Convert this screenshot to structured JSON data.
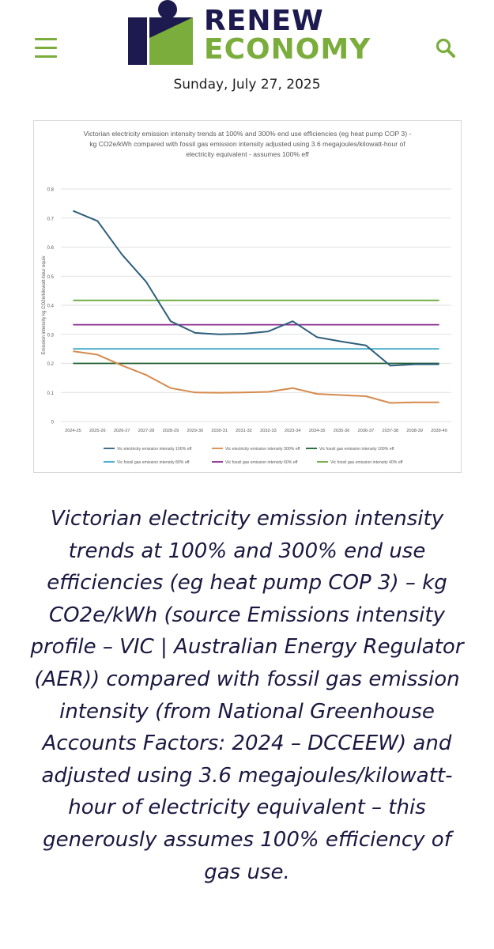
{
  "header": {
    "logo_line1": "RENEW",
    "logo_line2": "ECONOMY",
    "date": "Sunday, July 27, 2025",
    "menu_icon": "hamburger-menu-icon",
    "search_icon": "search-icon",
    "colors": {
      "navy": "#1c1a4e",
      "green": "#7bad3c"
    }
  },
  "chart_data": {
    "type": "line",
    "title_lines": [
      "Victorian electricity emission intensity trends at 100% and 300% end use efficiencies (eg heat pump COP 3) -",
      "kg CO2e/kWh compared with  fossil gas emission intensity  adjusted using 3.6 megajoules/kilowatt-hour of",
      "electricity equivalent - assumes 100% eff"
    ],
    "ylabel": "Emission intensity kg CO2e/kilowatt-hour equiv",
    "xlabel": "",
    "ylim": [
      0,
      0.8
    ],
    "yticks": [
      0,
      0.1,
      0.2,
      0.3,
      0.4,
      0.5,
      0.6,
      0.7,
      0.8
    ],
    "ytick_labels": [
      "0",
      "0.1",
      "0.2",
      "0.3",
      "0.4",
      "0.5",
      "0.6",
      "0.7",
      "0.8"
    ],
    "categories": [
      "2024-25",
      "2025-26",
      "2026-27",
      "2027-28",
      "2028-29",
      "2029-30",
      "2030-31",
      "2031-32",
      "2032-33",
      "2023-34",
      "2034-35",
      "2035-36",
      "2036-37",
      "2037-38",
      "2038-39",
      "2039-40"
    ],
    "grid": true,
    "legend_position": "bottom",
    "series": [
      {
        "name": "Vic electricity emission intensity 100% eff",
        "color": "#2e5f7c",
        "values": [
          0.725,
          0.69,
          0.575,
          0.48,
          0.345,
          0.305,
          0.3,
          0.302,
          0.31,
          0.345,
          0.29,
          0.275,
          0.262,
          0.192,
          0.197,
          0.197
        ]
      },
      {
        "name": "Vic electricity emission intensity 300% eff",
        "color": "#d58a4d",
        "values": [
          0.242,
          0.23,
          0.193,
          0.16,
          0.115,
          0.1,
          0.099,
          0.1,
          0.102,
          0.115,
          0.095,
          0.091,
          0.087,
          0.064,
          0.066,
          0.066
        ]
      },
      {
        "name": "Vic fossil gas emission intensity 100% eff",
        "color": "#1d5e2e",
        "values": [
          0.2,
          0.2,
          0.2,
          0.2,
          0.2,
          0.2,
          0.2,
          0.2,
          0.2,
          0.2,
          0.2,
          0.2,
          0.2,
          0.2,
          0.2,
          0.2
        ]
      },
      {
        "name": "Vic fossil gas emission intensity 80% eff",
        "color": "#3ba8c6",
        "values": [
          0.25,
          0.25,
          0.25,
          0.25,
          0.25,
          0.25,
          0.25,
          0.25,
          0.25,
          0.25,
          0.25,
          0.25,
          0.25,
          0.25,
          0.25,
          0.25
        ]
      },
      {
        "name": "Vic fossil gas emission intensity 60% eff",
        "color": "#8a2a8e",
        "values": [
          0.333,
          0.333,
          0.333,
          0.333,
          0.333,
          0.333,
          0.333,
          0.333,
          0.333,
          0.333,
          0.333,
          0.333,
          0.333,
          0.333,
          0.333,
          0.333
        ]
      },
      {
        "name": "Vic fossil gas emission intensity 40% eff",
        "color": "#6aa83b",
        "values": [
          0.417,
          0.417,
          0.417,
          0.417,
          0.417,
          0.417,
          0.417,
          0.417,
          0.417,
          0.417,
          0.417,
          0.417,
          0.417,
          0.417,
          0.417,
          0.417
        ]
      }
    ]
  },
  "article": {
    "caption": "Victorian electricity emission intensity trends at 100% and 300% end use efficiencies (eg heat pump COP 3) – kg CO2e/kWh (source Emissions intensity profile – VIC | Australian Energy Regulator (AER)) compared with fossil gas emission intensity (from National Greenhouse Accounts Factors: 2024 – DCCEEW) and adjusted using 3.6 megajoules/kilowatt-hour of electricity equivalent – this generously assumes 100% efficiency of gas use."
  }
}
